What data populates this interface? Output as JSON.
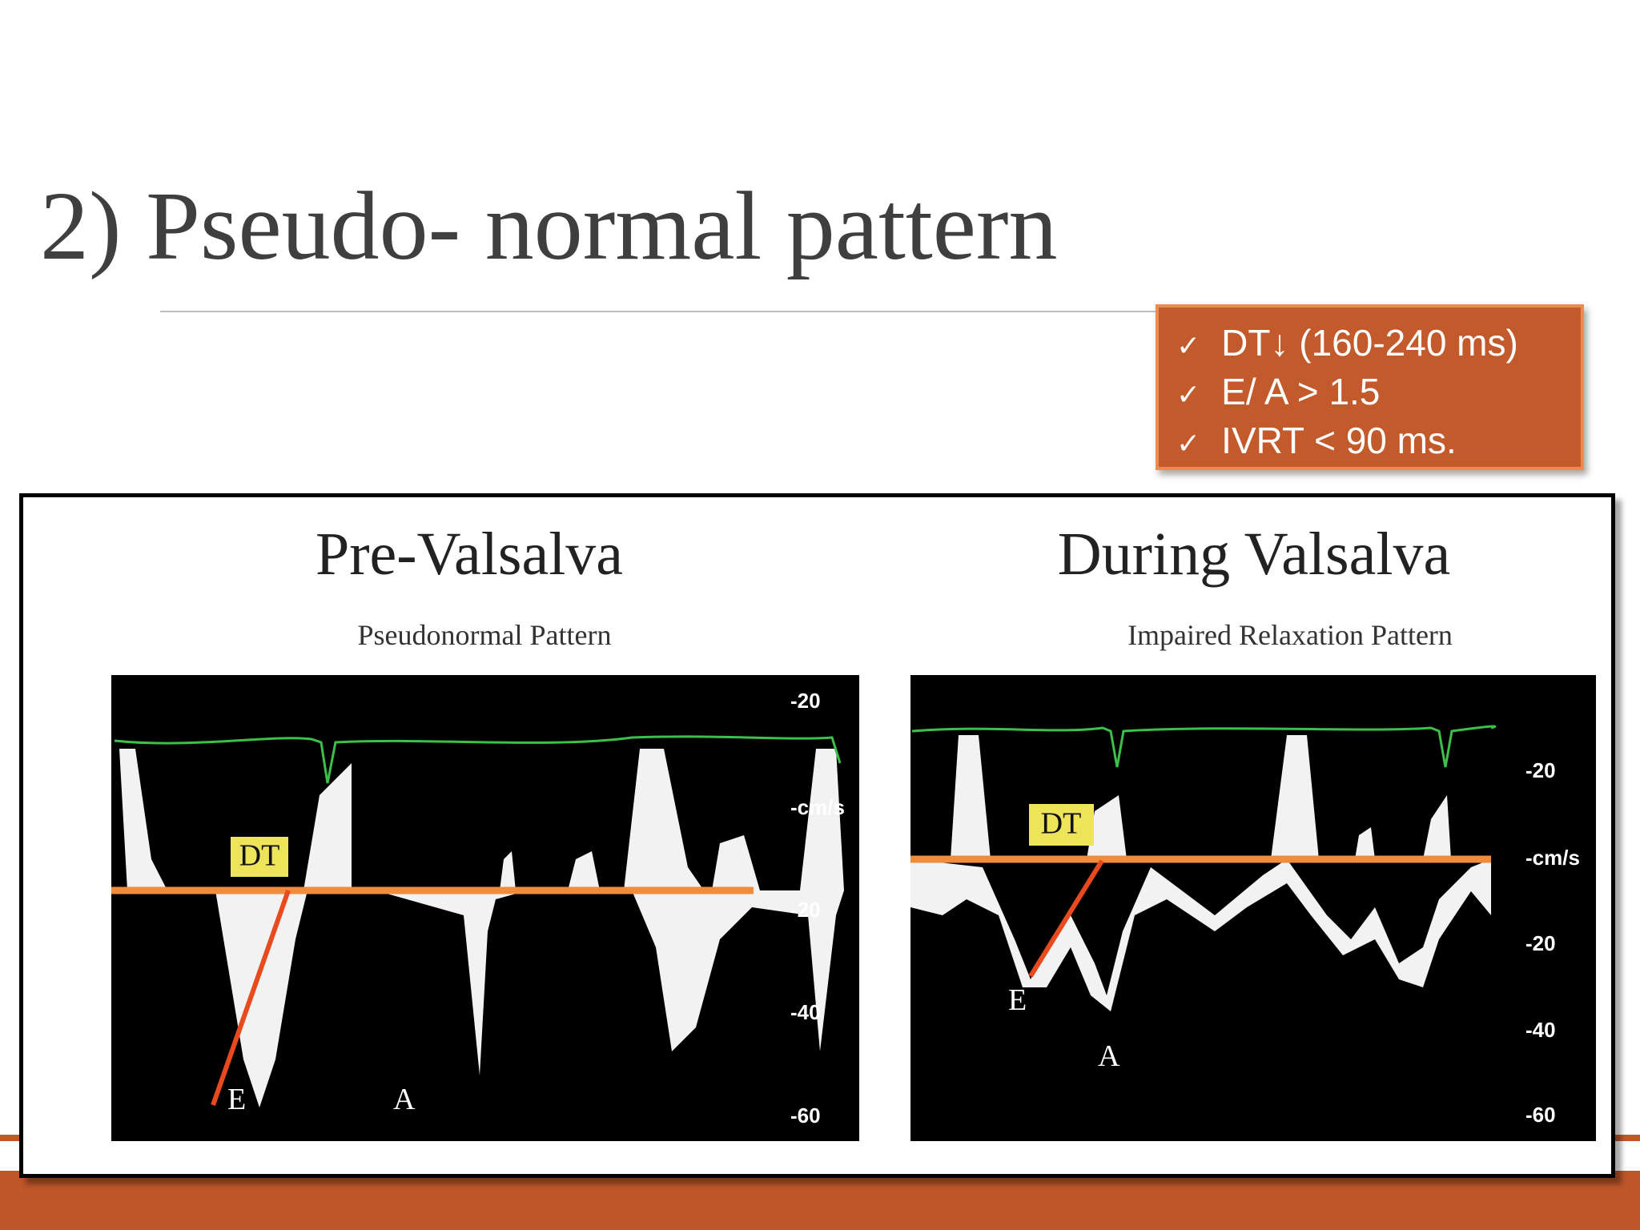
{
  "header": {
    "title": "2) Pseudo- normal pattern"
  },
  "criteria": [
    "DT↓ (160-240 ms)",
    "E/ A > 1.5",
    "IVRT < 90 ms."
  ],
  "figure": {
    "panels": [
      {
        "title": "Pre-Valsalva",
        "subtitle": "Pseudonormal Pattern",
        "axis_labels": [
          "-20",
          "-cm/s",
          "-20",
          "-40",
          "-60"
        ],
        "annotations": [
          "DT",
          "E",
          "A"
        ]
      },
      {
        "title": "During Valsalva",
        "subtitle": "Impaired Relaxation Pattern",
        "axis_labels": [
          "-20",
          "-cm/s",
          "-20",
          "-40",
          "-60"
        ],
        "annotations": [
          "DT",
          "E",
          "A"
        ]
      }
    ]
  }
}
